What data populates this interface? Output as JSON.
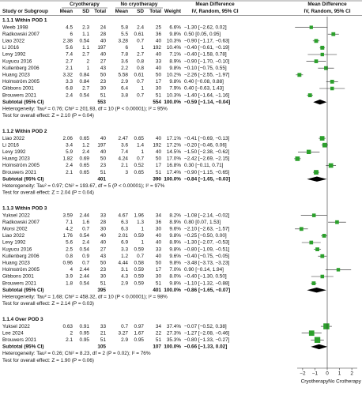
{
  "chart_data": {
    "type": "forest",
    "header": {
      "study": "Study or Subgroup",
      "group1": "Cryotherapy",
      "group2": "No cryotherapy",
      "mean": "Mean",
      "sd": "SD",
      "total": "Total",
      "weight": "Weight",
      "effect": "Mean Difference",
      "method": "IV, Random, 95% CI"
    },
    "xlim": [
      -2.7,
      2.7
    ],
    "xticks": [
      {
        "value": -2,
        "label": "−2"
      },
      {
        "value": -1,
        "label": "−1"
      },
      0,
      1,
      2
    ],
    "x_labels": [
      "Cryotherapy",
      "No Crotherapy"
    ],
    "marker_color": "#2ca02c",
    "groups": [
      {
        "title": "1.1.1 Within POD 1",
        "studies": [
          {
            "name": "Weeb 1998",
            "e": [
              4.5,
              2.3,
              24
            ],
            "c": [
              5.8,
              2.4,
              25
            ],
            "weight": 6.6,
            "weight_label": "6.6%",
            "md": -1.3,
            "ci": [
              -2.62,
              0.02
            ],
            "label": "−1.30 [−2.62, 0.02]"
          },
          {
            "name": "Radkowski 2007",
            "e": [
              6,
              1.1,
              28
            ],
            "c": [
              5.5,
              0.61,
              36
            ],
            "weight": 9.8,
            "weight_label": "9.8%",
            "md": 0.5,
            "ci": [
              0.05,
              0.95
            ],
            "label": "0.50 [0.05, 0.95]"
          },
          {
            "name": "Liao 2022",
            "e": [
              2.38,
              0.54,
              40
            ],
            "c": [
              3.28,
              0.7,
              40
            ],
            "weight": 10.3,
            "weight_label": "10.3%",
            "md": -0.9,
            "ci": [
              -1.17,
              -0.63
            ],
            "label": "−0.90 [−1.17, −0.63]"
          },
          {
            "name": "Li 2016",
            "e": [
              5.6,
              1.1,
              197
            ],
            "c": [
              6,
              1,
              192
            ],
            "weight": 10.4,
            "weight_label": "10.4%",
            "md": -0.4,
            "ci": [
              -0.61,
              -0.19
            ],
            "label": "−0.40 [−0.61, −0.19]"
          },
          {
            "name": "Levy 1992",
            "e": [
              7.4,
              2.7,
              40
            ],
            "c": [
              7.8,
              2.7,
              40
            ],
            "weight": 7.1,
            "weight_label": "7.1%",
            "md": -0.4,
            "ci": [
              -1.58,
              0.78
            ],
            "label": "−0.40 [−1.58, 0.78]"
          },
          {
            "name": "Kuyucu 2016",
            "e": [
              2.7,
              2,
              27
            ],
            "c": [
              3.6,
              0.8,
              33
            ],
            "weight": 8.9,
            "weight_label": "8.9%",
            "md": -0.9,
            "ci": [
              -1.7,
              -0.1
            ],
            "label": "−0.90 [−1.70, −0.10]"
          },
          {
            "name": "Kullenberg 2006",
            "e": [
              2.1,
              1,
              43
            ],
            "c": [
              2.2,
              0.8,
              40
            ],
            "weight": 9.8,
            "weight_label": "9.8%",
            "md": -0.1,
            "ci": [
              -0.75,
              0.55
            ],
            "label": "−0.10 [−0.75, 0.55]"
          },
          {
            "name": "Huang 2023",
            "e": [
              3.32,
              0.84,
              50
            ],
            "c": [
              5.58,
              0.61,
              50
            ],
            "weight": 10.2,
            "weight_label": "10.2%",
            "md": -2.26,
            "ci": [
              -2.55,
              -1.97
            ],
            "label": "−2.26 [−2.55, −1.97]"
          },
          {
            "name": "Holmström 2005",
            "e": [
              3.3,
              0.84,
              23
            ],
            "c": [
              2.9,
              0.7,
              17
            ],
            "weight": 9.8,
            "weight_label": "9.8%",
            "md": 0.4,
            "ci": [
              -0.08,
              0.88
            ],
            "label": "0.40 [−0.08, 0.88]"
          },
          {
            "name": "Gibbons 2001",
            "e": [
              6.8,
              2.7,
              30
            ],
            "c": [
              6.4,
              1,
              30
            ],
            "weight": 7.9,
            "weight_label": "7.9%",
            "md": 0.4,
            "ci": [
              -0.63,
              1.43
            ],
            "label": "0.40 [−0.63, 1.43]"
          },
          {
            "name": "Brouwers 2021",
            "e": [
              2.4,
              0.54,
              51
            ],
            "c": [
              3.8,
              0.7,
              51
            ],
            "weight": 10.3,
            "weight_label": "10.3%",
            "md": -1.4,
            "ci": [
              -1.64,
              -1.16
            ],
            "label": "−1.40 [−1.64, −1.16]"
          }
        ],
        "subtotal": {
          "name": "Subtotal (95% CI)",
          "e_total": 553,
          "c_total": 554,
          "weight": 100,
          "weight_label": "100.0%",
          "md": -0.59,
          "ci": [
            -1.14,
            -0.04
          ],
          "label": "−0.59 [−1.14, −0.04]"
        },
        "heterogeneity": "Heterogeneity: Tau² = 0.76; Chi² = 201.93, df = 10 (P < 0.00001); I² = 95%",
        "overall": "Test for overall effect: Z = 2.10 (P = 0.04)"
      },
      {
        "title": "1.1.2 Within POD 2",
        "studies": [
          {
            "name": "Liao 2022",
            "e": [
              2.06,
              0.65,
              40
            ],
            "c": [
              2.47,
              0.65,
              40
            ],
            "weight": 17.1,
            "weight_label": "17.1%",
            "md": -0.41,
            "ci": [
              -0.69,
              -0.13
            ],
            "label": "−0.41 [−0.69, −0.13]"
          },
          {
            "name": "Li 2016",
            "e": [
              3.4,
              1.2,
              197
            ],
            "c": [
              3.6,
              1.4,
              192
            ],
            "weight": 17.2,
            "weight_label": "17.2%",
            "md": -0.2,
            "ci": [
              -0.46,
              0.06
            ],
            "label": "−0.20 [−0.46, 0.06]"
          },
          {
            "name": "Levy 1992",
            "e": [
              5.9,
              2.4,
              40
            ],
            "c": [
              7.4,
              1,
              40
            ],
            "weight": 14.5,
            "weight_label": "14.5%",
            "md": -1.5,
            "ci": [
              -2.38,
              -0.62
            ],
            "label": "−1.50 [−2.38, −0.62]"
          },
          {
            "name": "Huang 2023",
            "e": [
              1.82,
              0.69,
              50
            ],
            "c": [
              4.24,
              0.7,
              50
            ],
            "weight": 17,
            "weight_label": "17.0%",
            "md": -2.42,
            "ci": [
              -2.69,
              -2.15
            ],
            "label": "−2.42 [−2.69, −2.15]"
          },
          {
            "name": "Holmström 2005",
            "e": [
              2.4,
              0.65,
              23
            ],
            "c": [
              2.1,
              0.52,
              17
            ],
            "weight": 16.8,
            "weight_label": "16.8%",
            "md": 0.3,
            "ci": [
              -0.11,
              0.71
            ],
            "label": "0.30 [−0.11, 0.71]"
          },
          {
            "name": "Brouwers 2021",
            "e": [
              2.1,
              0.65,
              51
            ],
            "c": [
              3,
              0.65,
              51
            ],
            "weight": 17.4,
            "weight_label": "17.4%",
            "md": -0.9,
            "ci": [
              -1.15,
              -0.65
            ],
            "label": "−0.90 [−1.15, −0.65]"
          }
        ],
        "subtotal": {
          "name": "Subtotal (95% CI)",
          "e_total": 401,
          "c_total": 390,
          "weight": 100,
          "weight_label": "100.0%",
          "md": -0.84,
          "ci": [
            -1.65,
            -0.03
          ],
          "label": "−0.84 [−1.65, −0.03]"
        },
        "heterogeneity": "Heterogeneity: Tau² = 0.97; Chi² = 193.67, df = 5 (P < 0.00001); I² = 97%",
        "overall": "Test for overall effect: Z = 2.04 (P = 0.04)"
      },
      {
        "title": "1.1.3 Within POD 3",
        "studies": [
          {
            "name": "Yuksel 2022",
            "e": [
              3.59,
              2.44,
              33
            ],
            "c": [
              4.67,
              1.96,
              34
            ],
            "weight": 8.2,
            "weight_label": "8.2%",
            "md": -1.08,
            "ci": [
              -2.14,
              -0.02
            ],
            "label": "−1.08 [−2.14, −0.02]"
          },
          {
            "name": "Radkowski 2007",
            "e": [
              7.1,
              1.6,
              28
            ],
            "c": [
              6.3,
              1.3,
              36
            ],
            "weight": 8.9,
            "weight_label": "8.9%",
            "md": 0.8,
            "ci": [
              0.07,
              1.53
            ],
            "label": "0.80 [0.07, 1.53]"
          },
          {
            "name": "Morsi 2002",
            "e": [
              4.2,
              0.7,
              30
            ],
            "c": [
              6.3,
              1,
              30
            ],
            "weight": 9.6,
            "weight_label": "9.6%",
            "md": -2.1,
            "ci": [
              -2.63,
              -1.57
            ],
            "label": "−2.10 [−2.63, −1.57]"
          },
          {
            "name": "Liao 2022",
            "e": [
              1.76,
              0.54,
              40
            ],
            "c": [
              2.01,
              0.59,
              40
            ],
            "weight": 9.8,
            "weight_label": "9.8%",
            "md": -0.25,
            "ci": [
              -0.5,
              0
            ],
            "label": "−0.25 [−0.50, 0.00]"
          },
          {
            "name": "Levy 1992",
            "e": [
              5.6,
              2.4,
              40
            ],
            "c": [
              6.9,
              1,
              40
            ],
            "weight": 8.9,
            "weight_label": "8.9%",
            "md": -1.3,
            "ci": [
              -2.07,
              -0.53
            ],
            "label": "−1.30 [−2.07, −0.53]"
          },
          {
            "name": "Kuyucu 2016",
            "e": [
              2.5,
              0.54,
              27
            ],
            "c": [
              3.3,
              0.59,
              33
            ],
            "weight": 9.8,
            "weight_label": "9.8%",
            "md": -0.8,
            "ci": [
              -1.09,
              -0.51
            ],
            "label": "−0.80 [−1.09, −0.51]"
          },
          {
            "name": "Kullenberg 2006",
            "e": [
              0.8,
              0.9,
              43
            ],
            "c": [
              1.2,
              0.7,
              40
            ],
            "weight": 9.6,
            "weight_label": "9.6%",
            "md": -0.4,
            "ci": [
              -0.75,
              -0.05
            ],
            "label": "−0.40 [−0.75, −0.05]"
          },
          {
            "name": "Huang 2023",
            "e": [
              0.96,
              0.7,
              50
            ],
            "c": [
              4.44,
              0.58,
              50
            ],
            "weight": 9.8,
            "weight_label": "9.8%",
            "md": -3.48,
            "ci": [
              -3.73,
              -3.23
            ],
            "label": "−3.48 [−3.73, −3.23]"
          },
          {
            "name": "Holmström 2005",
            "e": [
              4,
              2.44,
              23
            ],
            "c": [
              3.1,
              0.59,
              17
            ],
            "weight": 7,
            "weight_label": "7.0%",
            "md": 0.9,
            "ci": [
              -0.14,
              1.94
            ],
            "label": "0.90 [−0.14, 1.94]"
          },
          {
            "name": "Gibbons 2001",
            "e": [
              3.9,
              2.44,
              30
            ],
            "c": [
              4.3,
              0.59,
              30
            ],
            "weight": 8,
            "weight_label": "8.0%",
            "md": -0.4,
            "ci": [
              -1.3,
              0.5
            ],
            "label": "−0.40 [−1.30, 0.50]"
          },
          {
            "name": "Brouwers 2021",
            "e": [
              1.8,
              0.54,
              51
            ],
            "c": [
              2.9,
              0.59,
              51
            ],
            "weight": 9.8,
            "weight_label": "9.8%",
            "md": -1.1,
            "ci": [
              -1.32,
              -0.88
            ],
            "label": "−1.10 [−1.32, −0.88]"
          }
        ],
        "subtotal": {
          "name": "Subtotal (95% CI)",
          "e_total": 395,
          "c_total": 401,
          "weight": 100,
          "weight_label": "100.0%",
          "md": -0.86,
          "ci": [
            -1.65,
            -0.07
          ],
          "label": "−0.86 [−1.65, −0.07]"
        },
        "heterogeneity": "Heterogeneity: Tau² = 1.68; Chi² = 458.32, df = 10 (P < 0.00001); I² = 98%",
        "overall": "Test for overall effect: Z = 2.14 (P = 0.03)"
      },
      {
        "title": "1.1.4 Over POD 3",
        "studies": [
          {
            "name": "Yuksel 2022",
            "e": [
              0.63,
              0.91,
              33
            ],
            "c": [
              0.7,
              0.97,
              34
            ],
            "weight": 37.4,
            "weight_label": "37.4%",
            "md": -0.07,
            "ci": [
              -0.52,
              0.38
            ],
            "label": "−0.07 [−0.52, 0.38]"
          },
          {
            "name": "Lee 2024",
            "e": [
              2,
              0.95,
              21
            ],
            "c": [
              3.27,
              1.67,
              22
            ],
            "weight": 27.3,
            "weight_label": "27.3%",
            "md": -1.27,
            "ci": [
              -2.08,
              -0.46
            ],
            "label": "−1.27 [−2.08, −0.46]"
          },
          {
            "name": "Brouwers 2021",
            "e": [
              2.1,
              0.95,
              51
            ],
            "c": [
              2.9,
              0.95,
              51
            ],
            "weight": 35.3,
            "weight_label": "35.3%",
            "md": -0.8,
            "ci": [
              -1.33,
              -0.27
            ],
            "label": "−0.80 [−1.33, −0.27]"
          }
        ],
        "subtotal": {
          "name": "Subtotal (95% CI)",
          "e_total": 105,
          "c_total": 107,
          "weight": 100,
          "weight_label": "100.0%",
          "md": -0.66,
          "ci": [
            -1.33,
            0.02
          ],
          "label": "−0.66 [−1.33, 0.02]"
        },
        "heterogeneity": "Heterogeneity: Tau² = 0.26; Chi² = 8.23, df = 2 (P = 0.02); I² = 76%",
        "overall": "Test for overall effect: Z = 1.90 (P = 0.06)"
      }
    ]
  }
}
